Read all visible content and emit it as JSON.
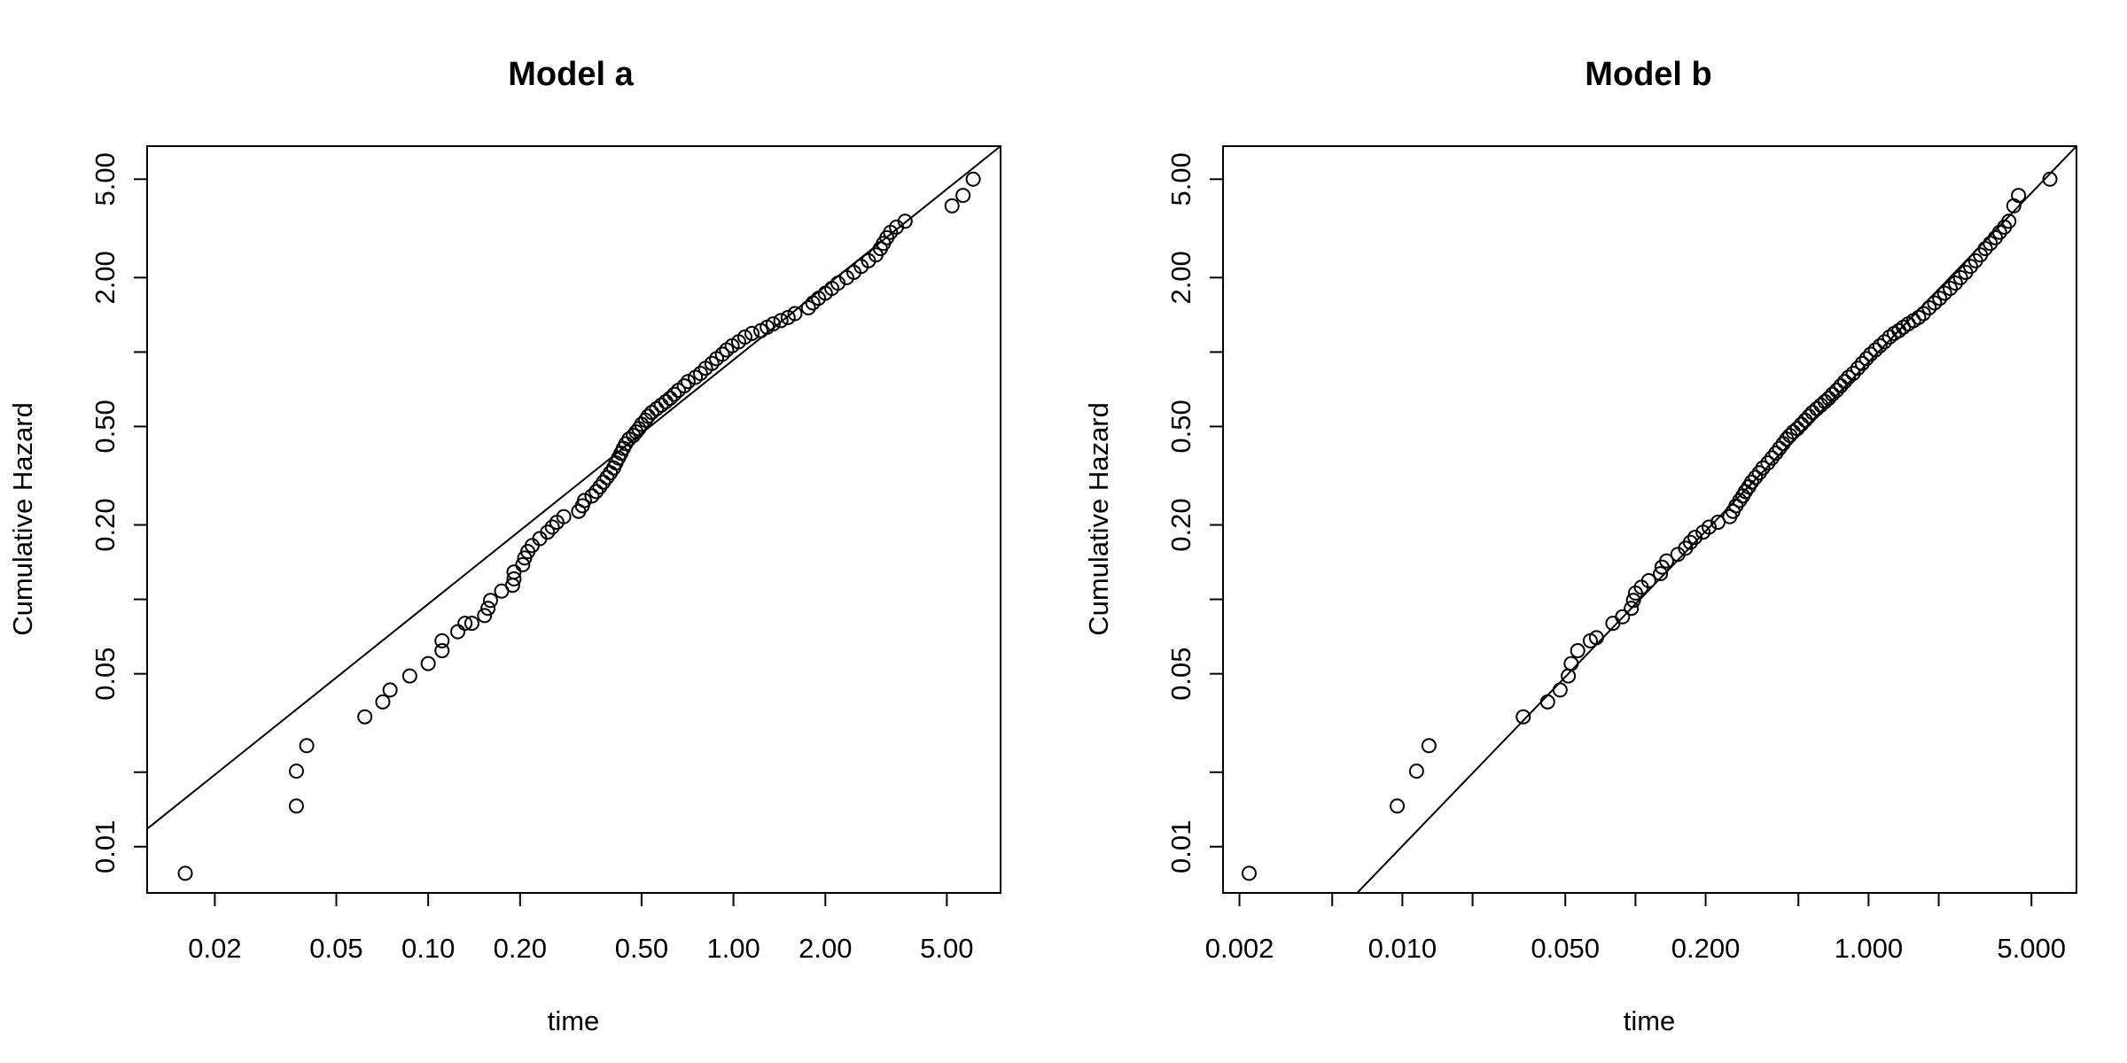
{
  "chart_data": [
    {
      "type": "scatter",
      "title": "Model a",
      "xlabel": "time",
      "ylabel": "Cumulative Hazard",
      "x_scale": "log",
      "y_scale": "log",
      "xlim": [
        0.012,
        7.5
      ],
      "ylim": [
        0.0065,
        6.8
      ],
      "x_ticks": [
        0.01,
        0.02,
        0.05,
        0.1,
        0.2,
        0.5,
        1,
        2,
        5
      ],
      "x_tick_labels": [
        "",
        "0.02",
        "0.05",
        "0.10",
        "0.20",
        "0.50",
        "1.00",
        "2.00",
        "5.00"
      ],
      "y_ticks": [
        0.01,
        0.02,
        0.05,
        0.1,
        0.2,
        0.5,
        1,
        2,
        5
      ],
      "y_tick_labels": [
        "0.01",
        "",
        "0.05",
        "",
        "0.20",
        "0.50",
        "",
        "2.00",
        "5.00"
      ],
      "grid": false,
      "reference_line": {
        "points": [
          [
            0.012,
            0.0118
          ],
          [
            7.5,
            6.8
          ]
        ]
      },
      "points": [
        [
          0.016,
          0.0078
        ],
        [
          0.037,
          0.0146
        ],
        [
          0.037,
          0.0202
        ],
        [
          0.04,
          0.0256
        ],
        [
          0.062,
          0.0335
        ],
        [
          0.071,
          0.0385
        ],
        [
          0.075,
          0.043
        ],
        [
          0.087,
          0.049
        ],
        [
          0.1,
          0.055
        ],
        [
          0.111,
          0.062
        ],
        [
          0.111,
          0.068
        ],
        [
          0.125,
          0.074
        ],
        [
          0.132,
          0.08
        ],
        [
          0.139,
          0.08
        ],
        [
          0.153,
          0.086
        ],
        [
          0.157,
          0.092
        ],
        [
          0.16,
          0.099
        ],
        [
          0.174,
          0.108
        ],
        [
          0.189,
          0.114
        ],
        [
          0.191,
          0.121
        ],
        [
          0.191,
          0.129
        ],
        [
          0.204,
          0.138
        ],
        [
          0.207,
          0.147
        ],
        [
          0.212,
          0.156
        ],
        [
          0.219,
          0.165
        ],
        [
          0.232,
          0.176
        ],
        [
          0.246,
          0.187
        ],
        [
          0.255,
          0.196
        ],
        [
          0.264,
          0.205
        ],
        [
          0.278,
          0.216
        ],
        [
          0.311,
          0.227
        ],
        [
          0.32,
          0.239
        ],
        [
          0.325,
          0.251
        ],
        [
          0.344,
          0.262
        ],
        [
          0.355,
          0.273
        ],
        [
          0.365,
          0.285
        ],
        [
          0.375,
          0.298
        ],
        [
          0.385,
          0.311
        ],
        [
          0.395,
          0.325
        ],
        [
          0.405,
          0.34
        ],
        [
          0.412,
          0.356
        ],
        [
          0.42,
          0.373
        ],
        [
          0.428,
          0.39
        ],
        [
          0.436,
          0.408
        ],
        [
          0.444,
          0.426
        ],
        [
          0.455,
          0.445
        ],
        [
          0.47,
          0.46
        ],
        [
          0.48,
          0.475
        ],
        [
          0.49,
          0.49
        ],
        [
          0.5,
          0.51
        ],
        [
          0.515,
          0.53
        ],
        [
          0.525,
          0.55
        ],
        [
          0.54,
          0.57
        ],
        [
          0.56,
          0.59
        ],
        [
          0.58,
          0.61
        ],
        [
          0.6,
          0.63
        ],
        [
          0.62,
          0.65
        ],
        [
          0.64,
          0.675
        ],
        [
          0.66,
          0.7
        ],
        [
          0.69,
          0.73
        ],
        [
          0.71,
          0.76
        ],
        [
          0.75,
          0.79
        ],
        [
          0.78,
          0.82
        ],
        [
          0.81,
          0.86
        ],
        [
          0.85,
          0.9
        ],
        [
          0.88,
          0.94
        ],
        [
          0.92,
          0.98
        ],
        [
          0.95,
          1.02
        ],
        [
          0.99,
          1.06
        ],
        [
          1.04,
          1.1
        ],
        [
          1.09,
          1.15
        ],
        [
          1.15,
          1.19
        ],
        [
          1.23,
          1.22
        ],
        [
          1.29,
          1.26
        ],
        [
          1.35,
          1.3
        ],
        [
          1.43,
          1.34
        ],
        [
          1.51,
          1.38
        ],
        [
          1.59,
          1.43
        ],
        [
          1.76,
          1.51
        ],
        [
          1.82,
          1.58
        ],
        [
          1.9,
          1.65
        ],
        [
          2.0,
          1.73
        ],
        [
          2.1,
          1.81
        ],
        [
          2.2,
          1.9
        ],
        [
          2.35,
          2.0
        ],
        [
          2.48,
          2.1
        ],
        [
          2.62,
          2.22
        ],
        [
          2.77,
          2.34
        ],
        [
          2.93,
          2.47
        ],
        [
          3.03,
          2.62
        ],
        [
          3.1,
          2.75
        ],
        [
          3.18,
          2.9
        ],
        [
          3.27,
          3.05
        ],
        [
          3.42,
          3.2
        ],
        [
          3.65,
          3.38
        ],
        [
          5.2,
          3.9
        ],
        [
          5.65,
          4.3
        ],
        [
          6.1,
          5.0
        ]
      ]
    },
    {
      "type": "scatter",
      "title": "Model b",
      "xlabel": "time",
      "ylabel": "Cumulative Hazard",
      "x_scale": "log",
      "y_scale": "log",
      "xlim": [
        0.0017,
        7.8
      ],
      "ylim": [
        0.0065,
        6.8
      ],
      "x_ticks": [
        0.002,
        0.005,
        0.01,
        0.02,
        0.05,
        0.1,
        0.2,
        0.5,
        1,
        2,
        5
      ],
      "x_tick_labels": [
        "0.002",
        "",
        "0.010",
        "",
        "0.050",
        "",
        "0.200",
        "",
        "1.000",
        "",
        "5.000"
      ],
      "y_ticks": [
        0.01,
        0.02,
        0.05,
        0.1,
        0.2,
        0.5,
        1,
        2,
        5
      ],
      "y_tick_labels": [
        "0.01",
        "",
        "0.05",
        "",
        "0.20",
        "0.50",
        "",
        "2.00",
        "5.00"
      ],
      "grid": false,
      "reference_line": {
        "points": [
          [
            0.0064,
            0.0065
          ],
          [
            7.8,
            6.8
          ]
        ]
      },
      "points": [
        [
          0.0022,
          0.0078
        ],
        [
          0.0095,
          0.0146
        ],
        [
          0.0115,
          0.0202
        ],
        [
          0.013,
          0.0256
        ],
        [
          0.033,
          0.0335
        ],
        [
          0.042,
          0.0385
        ],
        [
          0.0475,
          0.043
        ],
        [
          0.0515,
          0.049
        ],
        [
          0.053,
          0.055
        ],
        [
          0.0565,
          0.062
        ],
        [
          0.064,
          0.068
        ],
        [
          0.068,
          0.07
        ],
        [
          0.08,
          0.08
        ],
        [
          0.088,
          0.085
        ],
        [
          0.096,
          0.092
        ],
        [
          0.098,
          0.099
        ],
        [
          0.1,
          0.106
        ],
        [
          0.106,
          0.112
        ],
        [
          0.114,
          0.119
        ],
        [
          0.128,
          0.127
        ],
        [
          0.13,
          0.135
        ],
        [
          0.136,
          0.143
        ],
        [
          0.152,
          0.152
        ],
        [
          0.164,
          0.161
        ],
        [
          0.172,
          0.17
        ],
        [
          0.18,
          0.178
        ],
        [
          0.195,
          0.187
        ],
        [
          0.207,
          0.196
        ],
        [
          0.226,
          0.205
        ],
        [
          0.254,
          0.216
        ],
        [
          0.262,
          0.227
        ],
        [
          0.27,
          0.239
        ],
        [
          0.28,
          0.251
        ],
        [
          0.289,
          0.262
        ],
        [
          0.296,
          0.273
        ],
        [
          0.306,
          0.285
        ],
        [
          0.315,
          0.298
        ],
        [
          0.327,
          0.311
        ],
        [
          0.34,
          0.325
        ],
        [
          0.352,
          0.34
        ],
        [
          0.37,
          0.356
        ],
        [
          0.385,
          0.373
        ],
        [
          0.4,
          0.39
        ],
        [
          0.415,
          0.408
        ],
        [
          0.43,
          0.426
        ],
        [
          0.445,
          0.445
        ],
        [
          0.46,
          0.46
        ],
        [
          0.475,
          0.475
        ],
        [
          0.495,
          0.49
        ],
        [
          0.515,
          0.51
        ],
        [
          0.535,
          0.53
        ],
        [
          0.555,
          0.55
        ],
        [
          0.575,
          0.57
        ],
        [
          0.6,
          0.59
        ],
        [
          0.625,
          0.61
        ],
        [
          0.65,
          0.63
        ],
        [
          0.675,
          0.65
        ],
        [
          0.7,
          0.675
        ],
        [
          0.73,
          0.7
        ],
        [
          0.76,
          0.73
        ],
        [
          0.79,
          0.76
        ],
        [
          0.82,
          0.79
        ],
        [
          0.86,
          0.82
        ],
        [
          0.9,
          0.86
        ],
        [
          0.94,
          0.9
        ],
        [
          0.98,
          0.94
        ],
        [
          1.02,
          0.98
        ],
        [
          1.07,
          1.02
        ],
        [
          1.12,
          1.06
        ],
        [
          1.17,
          1.1
        ],
        [
          1.23,
          1.15
        ],
        [
          1.29,
          1.19
        ],
        [
          1.35,
          1.22
        ],
        [
          1.41,
          1.26
        ],
        [
          1.48,
          1.3
        ],
        [
          1.56,
          1.34
        ],
        [
          1.64,
          1.38
        ],
        [
          1.72,
          1.43
        ],
        [
          1.82,
          1.51
        ],
        [
          1.92,
          1.58
        ],
        [
          2.02,
          1.65
        ],
        [
          2.12,
          1.73
        ],
        [
          2.24,
          1.81
        ],
        [
          2.36,
          1.9
        ],
        [
          2.48,
          2.0
        ],
        [
          2.61,
          2.1
        ],
        [
          2.74,
          2.22
        ],
        [
          2.88,
          2.34
        ],
        [
          3.02,
          2.47
        ],
        [
          3.17,
          2.62
        ],
        [
          3.33,
          2.75
        ],
        [
          3.5,
          2.9
        ],
        [
          3.65,
          3.05
        ],
        [
          3.83,
          3.2
        ],
        [
          4.0,
          3.38
        ],
        [
          4.2,
          3.9
        ],
        [
          4.4,
          4.3
        ],
        [
          6.0,
          5.0
        ]
      ]
    }
  ]
}
